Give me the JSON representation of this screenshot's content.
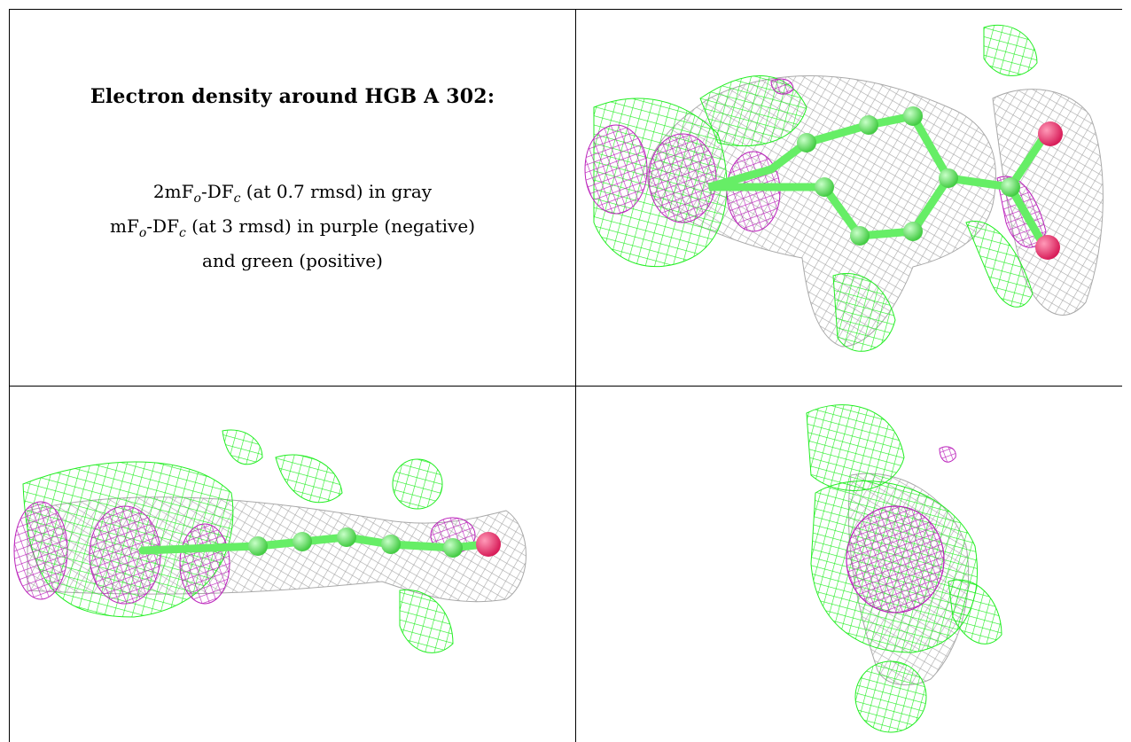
{
  "caption": {
    "title": "Electron density around HGB A 302:",
    "line1": {
      "pre": "2mF",
      "sub1": "o",
      "mid": "-DF",
      "sub2": "c",
      "post": " (at 0.7 rmsd) in gray"
    },
    "line2": {
      "pre": "mF",
      "sub1": "o",
      "mid": "-DF",
      "sub2": "c",
      "post": " (at 3 rmsd) in purple (negative)"
    },
    "line3": "and green (positive)"
  },
  "colors": {
    "gray_mesh": "#a9a9a9",
    "negative_mesh": "#bb22bb",
    "positive_mesh": "#22ee22",
    "ligand_carbon": "#66ee66",
    "ligand_oxygen": "#e8306a"
  },
  "views": [
    {
      "id": "view-top-right"
    },
    {
      "id": "view-bottom-left"
    },
    {
      "id": "view-bottom-right"
    }
  ]
}
